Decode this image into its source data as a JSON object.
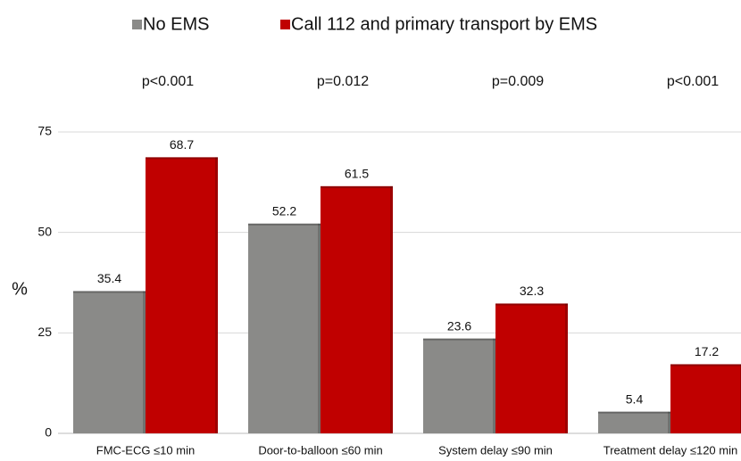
{
  "chart_data": {
    "type": "bar",
    "y_label": "%",
    "categories": [
      "FMC-ECG ≤10 min",
      "Door-to-balloon ≤60 min",
      "System delay ≤90 min",
      "Treatment delay ≤120 min"
    ],
    "series": [
      {
        "name": "No EMS",
        "color": "#8a8a88",
        "values": [
          35.4,
          52.2,
          23.6,
          5.4
        ]
      },
      {
        "name": "Call 112 and primary transport by EMS",
        "color": "#c00000",
        "values": [
          68.7,
          61.5,
          32.3,
          17.2
        ]
      }
    ],
    "annotations": [
      "p<0.001",
      "p=0.012",
      "p=0.009",
      "p<0.001"
    ],
    "ylim": [
      0,
      75
    ],
    "yticks": [
      0,
      25,
      50,
      75
    ],
    "grid": true
  }
}
